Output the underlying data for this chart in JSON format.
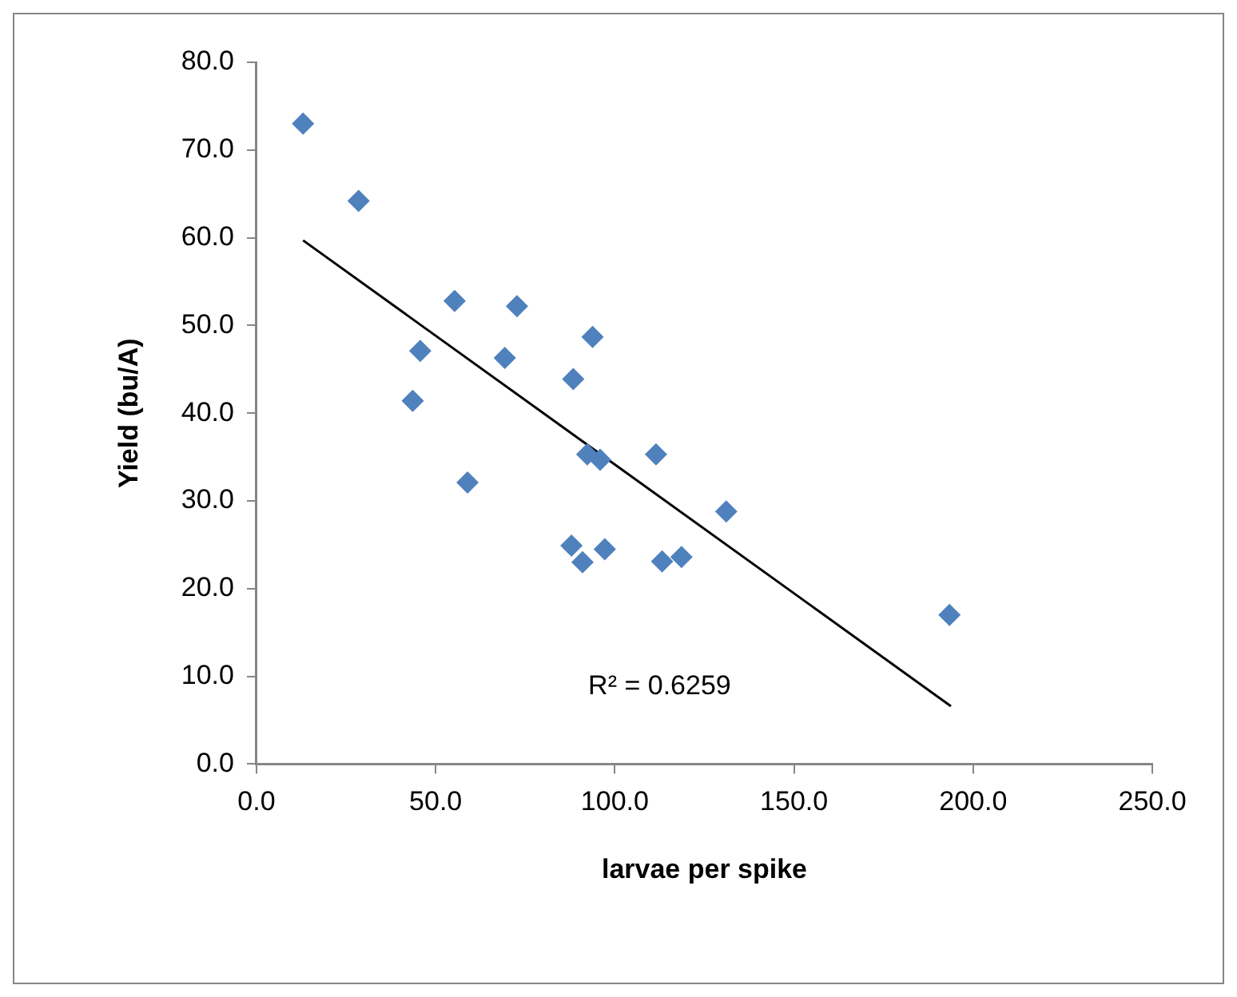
{
  "chart_data": {
    "type": "scatter",
    "xlabel": "larvae per spike",
    "ylabel": "Yield (bu/A)",
    "xlim": [
      0,
      250
    ],
    "xticks": [
      {
        "value": 0,
        "label": "0.0"
      },
      {
        "value": 50,
        "label": "50.0"
      },
      {
        "value": 100,
        "label": "100.0"
      },
      {
        "value": 150,
        "label": "150.0"
      },
      {
        "value": 200,
        "label": "200.0"
      },
      {
        "value": 250,
        "label": "250.0"
      }
    ],
    "ylim": [
      0,
      80
    ],
    "yticks": [
      {
        "value": 0,
        "label": "0.0"
      },
      {
        "value": 10,
        "label": "10.0"
      },
      {
        "value": 20,
        "label": "20.0"
      },
      {
        "value": 30,
        "label": "30.0"
      },
      {
        "value": 40,
        "label": "40.0"
      },
      {
        "value": 50,
        "label": "50.0"
      },
      {
        "value": 60,
        "label": "60.0"
      },
      {
        "value": 70,
        "label": "70.0"
      },
      {
        "value": 80,
        "label": "80.0"
      }
    ],
    "grid": false,
    "legend": false,
    "marker": "diamond",
    "series": [
      {
        "type": "scatter",
        "color": "#4f81bd",
        "x": [
          13.0,
          28.5,
          55.3,
          72.7,
          93.8,
          45.7,
          69.3,
          88.4,
          43.6,
          58.9,
          92.3,
          95.9,
          111.5,
          131.1,
          87.9,
          91.0,
          97.2,
          113.2,
          118.6,
          193.4
        ],
        "values": [
          73.0,
          64.2,
          52.8,
          52.2,
          48.7,
          47.1,
          46.3,
          43.9,
          41.4,
          32.1,
          35.3,
          34.7,
          35.3,
          28.8,
          24.9,
          23.0,
          24.5,
          23.1,
          23.6,
          17.0
        ]
      },
      {
        "type": "line",
        "color": "#000000",
        "marker": "none",
        "x": [
          13.0,
          193.8
        ],
        "values": [
          59.7,
          6.6
        ]
      }
    ],
    "annotations": [
      "R² = 0.6259"
    ]
  }
}
